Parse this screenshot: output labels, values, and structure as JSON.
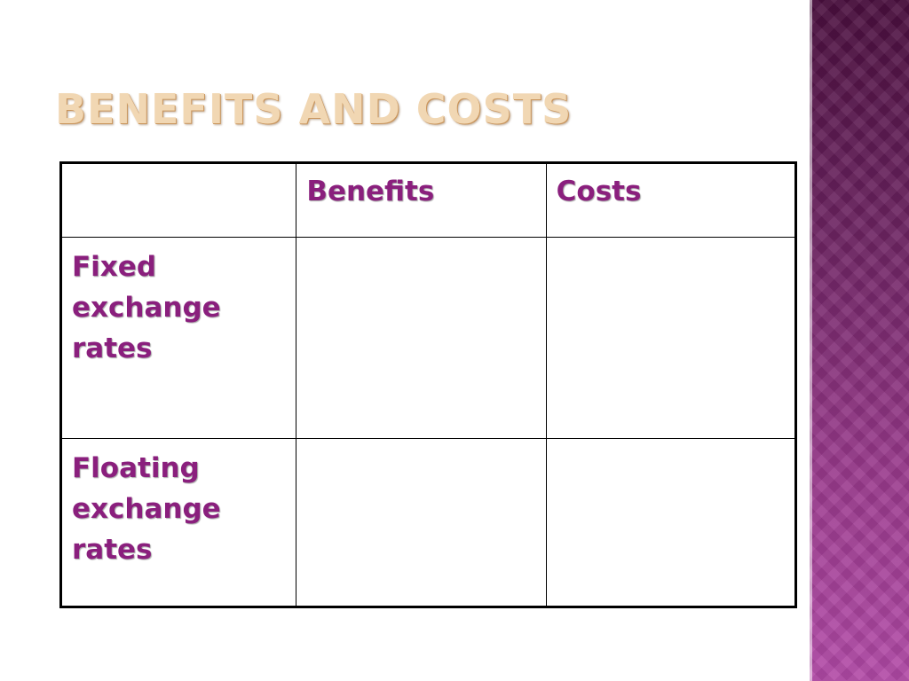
{
  "slide": {
    "title": "BENEFITS AND COSTS",
    "accent_band_color": "#7a2a6e",
    "title_color": "#f1d7b3",
    "table_text_color": "#8a1f7d"
  },
  "table": {
    "headers": [
      "",
      "Benefits",
      "Costs"
    ],
    "rows": [
      {
        "label": "Fixed exchange rates",
        "benefits": "",
        "costs": ""
      },
      {
        "label": "Floating exchange rates",
        "benefits": "",
        "costs": ""
      }
    ]
  }
}
